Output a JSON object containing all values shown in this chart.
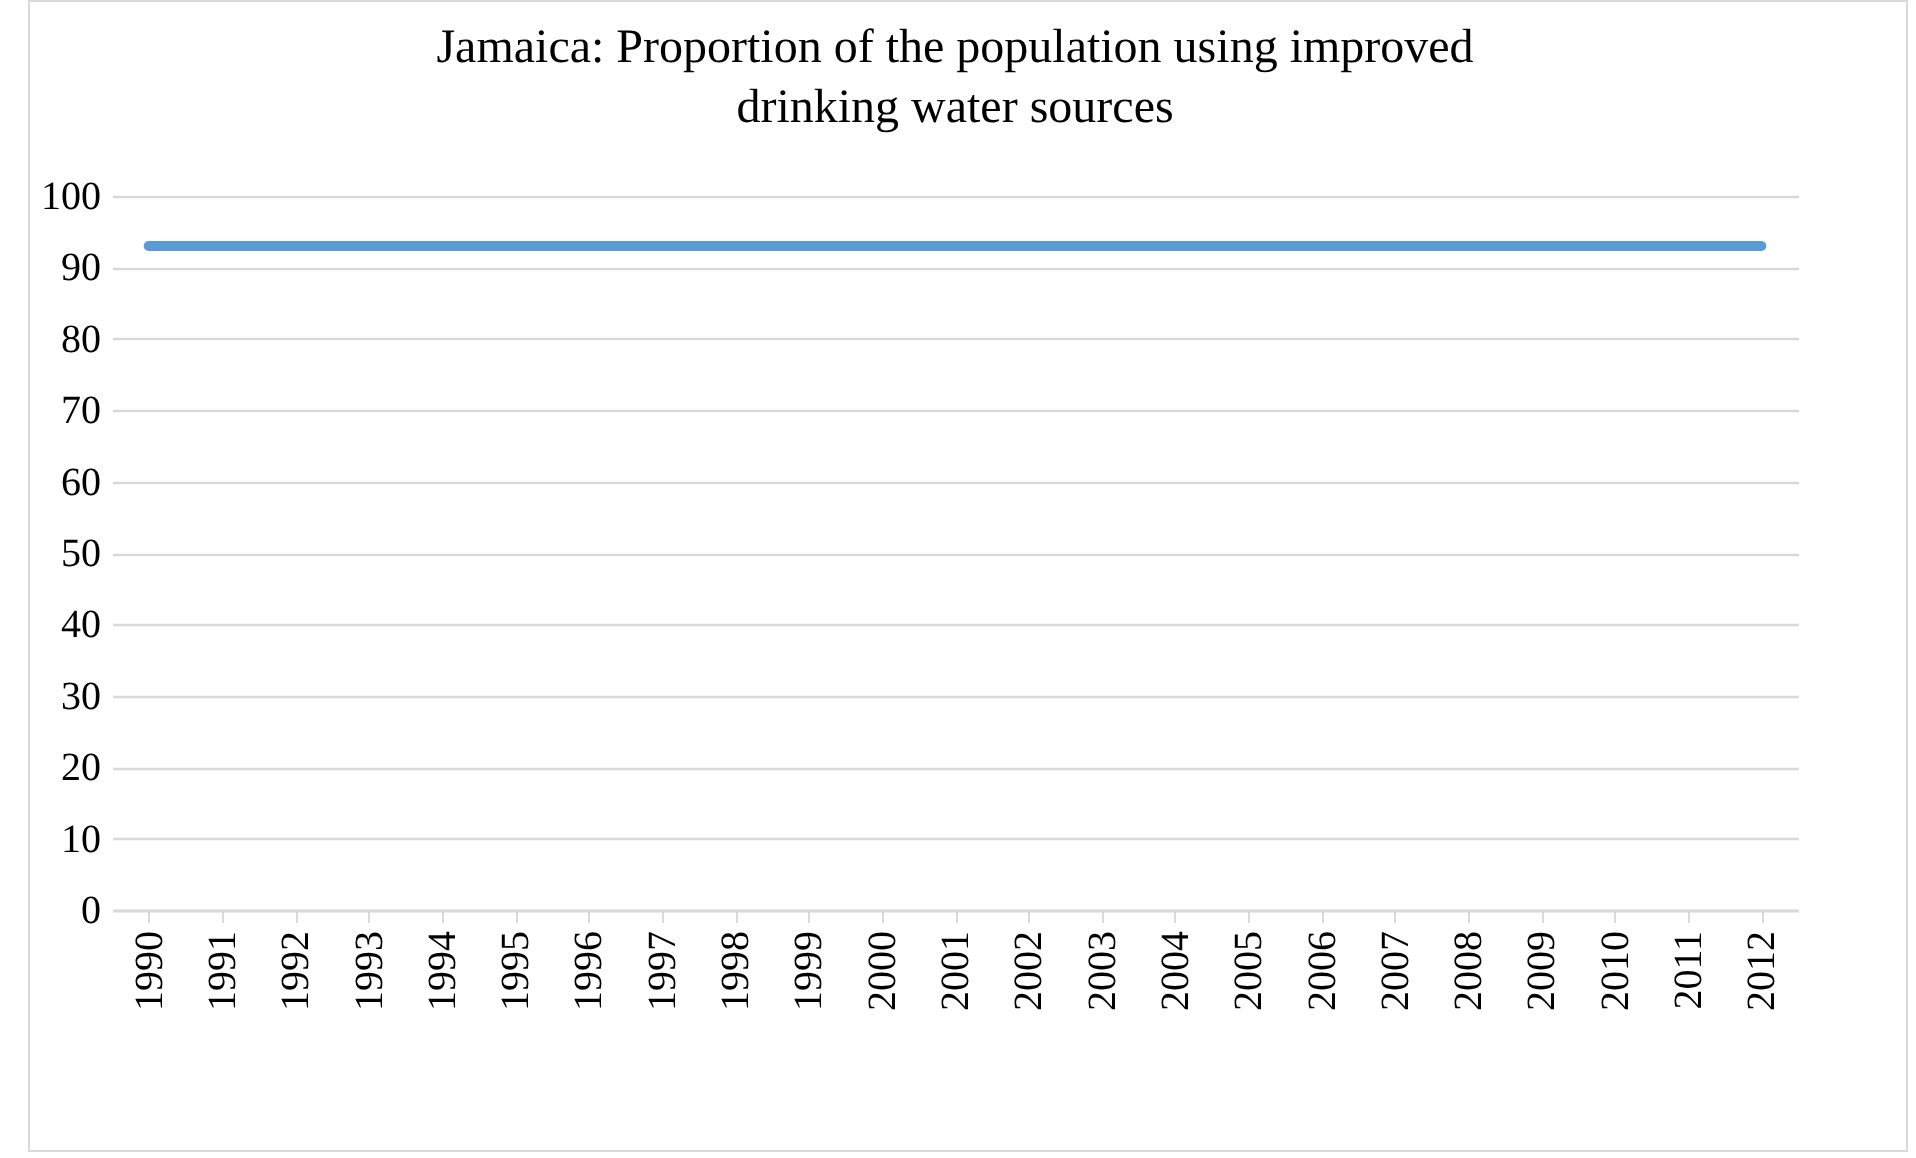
{
  "chart_data": {
    "type": "line",
    "title": "Jamaica:  Proportion of the population using improved\ndrinking  water sources",
    "categories": [
      "1990",
      "1991",
      "1992",
      "1993",
      "1994",
      "1995",
      "1996",
      "1997",
      "1998",
      "1999",
      "2000",
      "2001",
      "2002",
      "2003",
      "2004",
      "2005",
      "2006",
      "2007",
      "2008",
      "2009",
      "2010",
      "2011",
      "2012"
    ],
    "series": [
      {
        "color": "#5b9bd5",
        "values": [
          93,
          93,
          93,
          93,
          93,
          93,
          93,
          93,
          93,
          93,
          93,
          93,
          93,
          93,
          93,
          93,
          93,
          93,
          93,
          93,
          93,
          93,
          93
        ]
      }
    ],
    "ylim": [
      0,
      100
    ],
    "yticks": [
      0,
      10,
      20,
      30,
      40,
      50,
      60,
      70,
      80,
      90,
      100
    ],
    "grid": "y",
    "marker": "none",
    "line_style": "solid"
  }
}
